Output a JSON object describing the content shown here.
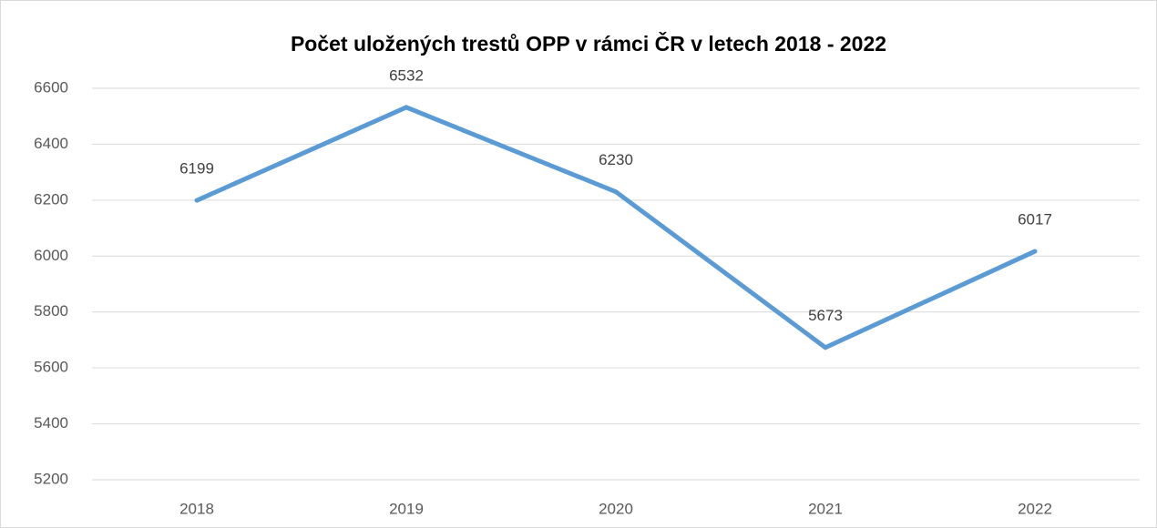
{
  "chart_data": {
    "type": "line",
    "title": "Počet uložených trestů OPP v rámci ČR v letech 2018 - 2022",
    "categories": [
      "2018",
      "2019",
      "2020",
      "2021",
      "2022"
    ],
    "series": [
      {
        "name": "Počet",
        "color": "#5b9bd5",
        "values": [
          6199,
          6532,
          6230,
          5673,
          6017
        ]
      }
    ],
    "ylim": [
      5200,
      6600
    ],
    "yticks": [
      5200,
      5400,
      5600,
      5800,
      6000,
      6200,
      6400,
      6600
    ],
    "grid": true,
    "data_labels": true,
    "legend": false
  }
}
